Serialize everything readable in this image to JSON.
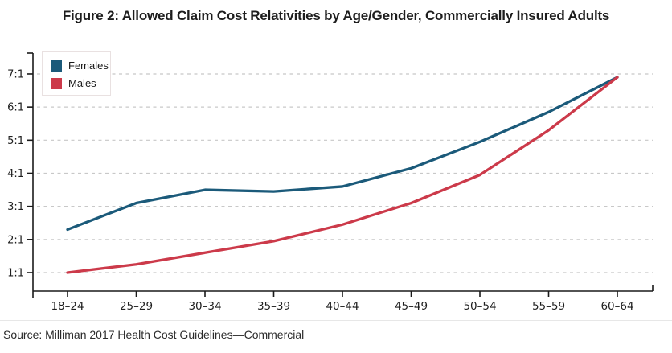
{
  "title": "Figure 2: Allowed Claim Cost Relativities by Age/Gender, Commercially Insured Adults",
  "source": "Source: Milliman 2017 Health Cost Guidelines—Commercial",
  "colors": {
    "females": "#1b5a7a",
    "males": "#cc3a4a",
    "axis": "#1a1a1a",
    "grid": "#c8c8c8",
    "tick_label": "#1f1f1f"
  },
  "chart_data": {
    "type": "line",
    "title": "Figure 2: Allowed Claim Cost Relativities by Age/Gender, Commercially Insured Adults",
    "categories": [
      "18–24",
      "25–29",
      "30–34",
      "35–39",
      "40–44",
      "45–49",
      "50–54",
      "55–59",
      "60–64"
    ],
    "series": [
      {
        "name": "Females",
        "color": "#1b5a7a",
        "values": [
          2.3,
          3.1,
          3.5,
          3.45,
          3.6,
          4.15,
          4.95,
          5.85,
          6.9
        ]
      },
      {
        "name": "Males",
        "color": "#cc3a4a",
        "values": [
          1.0,
          1.25,
          1.6,
          1.95,
          2.45,
          3.1,
          3.95,
          5.3,
          6.9
        ]
      }
    ],
    "y_tick_labels": [
      "1:1",
      "2:1",
      "3:1",
      "4:1",
      "5:1",
      "6:1",
      "7:1"
    ],
    "y_tick_values": [
      1,
      2,
      3,
      4,
      5,
      6,
      7
    ],
    "ylim": [
      1,
      7
    ],
    "xlabel": "",
    "ylabel": "",
    "grid": "horizontal-dashed",
    "legend_position": "top-left",
    "source": "Source: Milliman 2017 Health Cost Guidelines—Commercial"
  }
}
